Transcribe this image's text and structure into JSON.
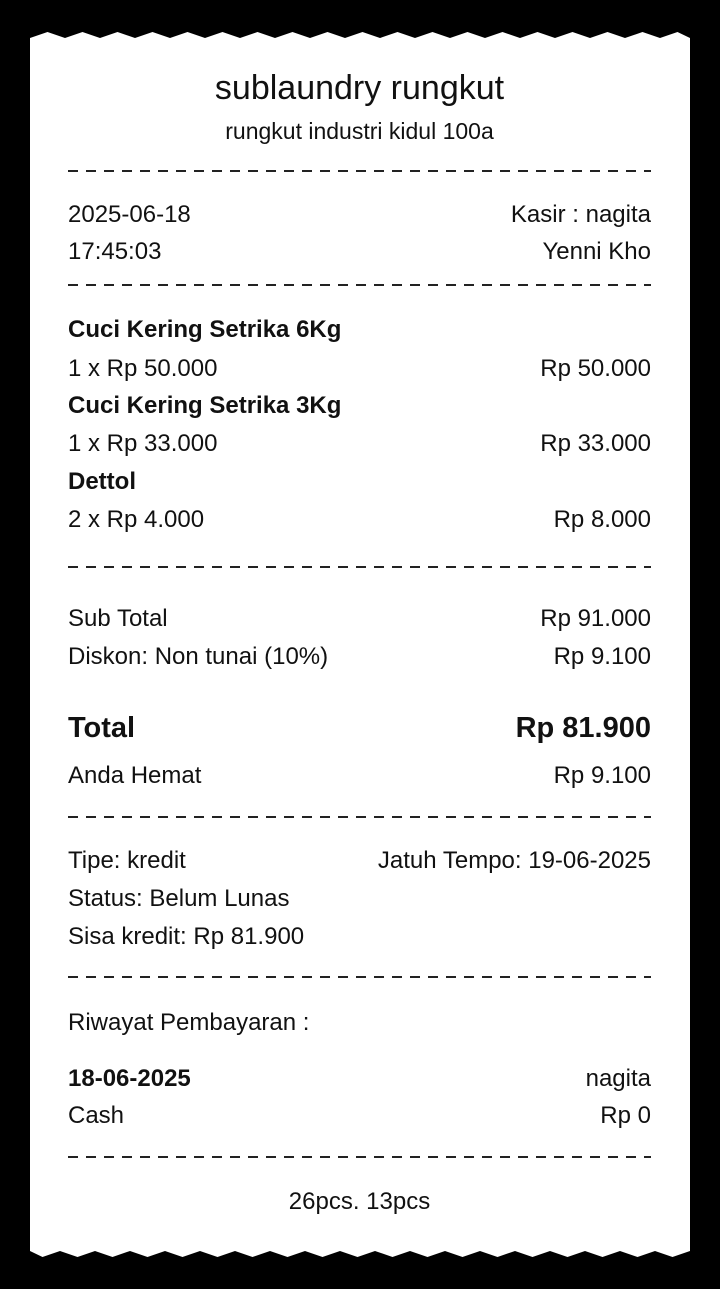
{
  "store": {
    "name": "sublaundry rungkut",
    "address": "rungkut industri kidul 100a"
  },
  "meta": {
    "date": "2025-06-18",
    "time": "17:45:03",
    "cashier": "Kasir : nagita",
    "customer": "Yenni Kho"
  },
  "items": [
    {
      "name": "Cuci Kering Setrika 6Kg",
      "qty_price": "1 x Rp 50.000",
      "total": "Rp 50.000"
    },
    {
      "name": "Cuci Kering Setrika 3Kg",
      "qty_price": "1 x Rp 33.000",
      "total": "Rp 33.000"
    },
    {
      "name": "Dettol",
      "qty_price": "2 x Rp 4.000",
      "total": "Rp 8.000"
    }
  ],
  "summary": {
    "subtotal_label": "Sub Total",
    "subtotal": "Rp 91.000",
    "discount_label": "Diskon: Non tunai (10%)",
    "discount": "Rp 9.100",
    "total_label": "Total",
    "total": "Rp 81.900",
    "saved_label": "Anda Hemat",
    "saved": "Rp 9.100"
  },
  "payment": {
    "type": "Tipe: kredit",
    "due": "Jatuh Tempo: 19-06-2025",
    "status": "Status: Belum Lunas",
    "remaining": "Sisa kredit: Rp 81.900"
  },
  "history": {
    "title": "Riwayat Pembayaran :",
    "entries": [
      {
        "date": "18-06-2025",
        "user": "nagita",
        "method": "Cash",
        "amount": "Rp 0"
      }
    ]
  },
  "footer": "26pcs. 13pcs"
}
